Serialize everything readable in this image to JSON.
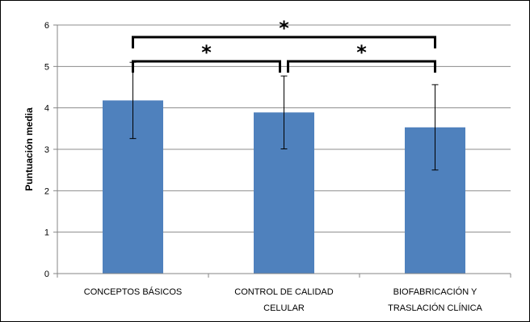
{
  "chart_data": {
    "type": "bar",
    "categories": [
      [
        "CONCEPTOS BÁSICOS"
      ],
      [
        "CONTROL DE CALIDAD",
        "CELULAR"
      ],
      [
        "BIOFABRICACIÓN Y",
        "TRASLACIÓN CLÍNICA"
      ]
    ],
    "values": [
      4.18,
      3.89,
      3.53
    ],
    "error": [
      0.92,
      0.88,
      1.03
    ],
    "ylabel": "Puntuación media",
    "ylim": [
      0,
      6
    ],
    "yticks": [
      0,
      1,
      2,
      3,
      4,
      5,
      6
    ],
    "grid": true,
    "bar_color": "#4f81bd",
    "grid_color": "#8c8c8c",
    "significance": [
      {
        "from": 0,
        "to": 1,
        "label": "*",
        "level": 1
      },
      {
        "from": 1,
        "to": 2,
        "label": "*",
        "level": 1
      },
      {
        "from": 0,
        "to": 2,
        "label": "*",
        "level": 2
      }
    ]
  }
}
